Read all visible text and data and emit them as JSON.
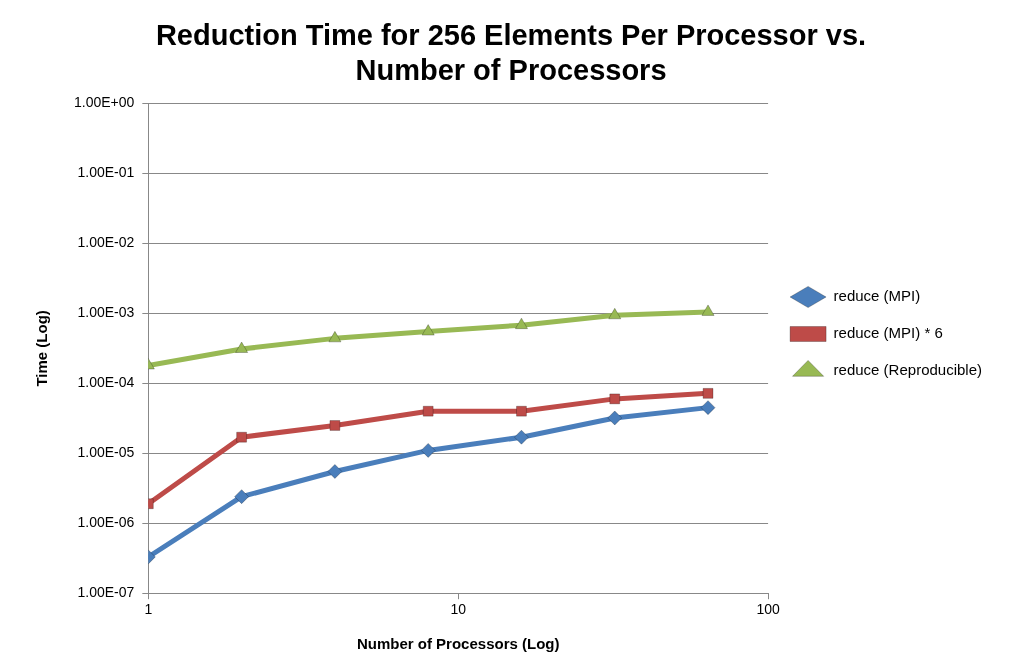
{
  "chart_data": {
    "type": "line",
    "title": "Reduction Time for 256 Elements Per Processor vs. Number of Processors",
    "xlabel": "Number of Processors (Log)",
    "ylabel": "Time (Log)",
    "series": [
      {
        "name": "reduce (MPI)",
        "color": "#4a7ebb",
        "marker": "diamond",
        "x": [
          1,
          2,
          4,
          8,
          16,
          32,
          64
        ],
        "values": [
          3.3e-07,
          2.4e-06,
          5.5e-06,
          1.1e-05,
          1.7e-05,
          3.2e-05,
          4.5e-05
        ]
      },
      {
        "name": "reduce (MPI) * 6",
        "color": "#be4b48",
        "marker": "square",
        "x": [
          1,
          2,
          4,
          8,
          16,
          32,
          64
        ],
        "values": [
          1.9e-06,
          1.7e-05,
          2.5e-05,
          4e-05,
          4e-05,
          6e-05,
          7.2e-05
        ]
      },
      {
        "name": "reduce (Reproducible)",
        "color": "#98b954",
        "marker": "triangle",
        "x": [
          1,
          2,
          4,
          8,
          16,
          32,
          64
        ],
        "values": [
          0.00018,
          0.00031,
          0.00044,
          0.00055,
          0.00068,
          0.00094,
          0.00105
        ]
      }
    ],
    "log": "xy",
    "xlim": [
      1,
      100
    ],
    "xticks": [
      1,
      10,
      100
    ],
    "ylim": [
      1e-07,
      1
    ],
    "yticks": [
      {
        "value": 1e-07,
        "label": "1.00E-07"
      },
      {
        "value": 1e-06,
        "label": "1.00E-06"
      },
      {
        "value": 1e-05,
        "label": "1.00E-05"
      },
      {
        "value": 0.0001,
        "label": "1.00E-04"
      },
      {
        "value": 0.001,
        "label": "1.00E-03"
      },
      {
        "value": 0.01,
        "label": "1.00E-02"
      },
      {
        "value": 0.1,
        "label": "1.00E-01"
      },
      {
        "value": 1,
        "label": "1.00E+00"
      }
    ],
    "grid": "y",
    "legend": "right",
    "line_style": "solid"
  }
}
